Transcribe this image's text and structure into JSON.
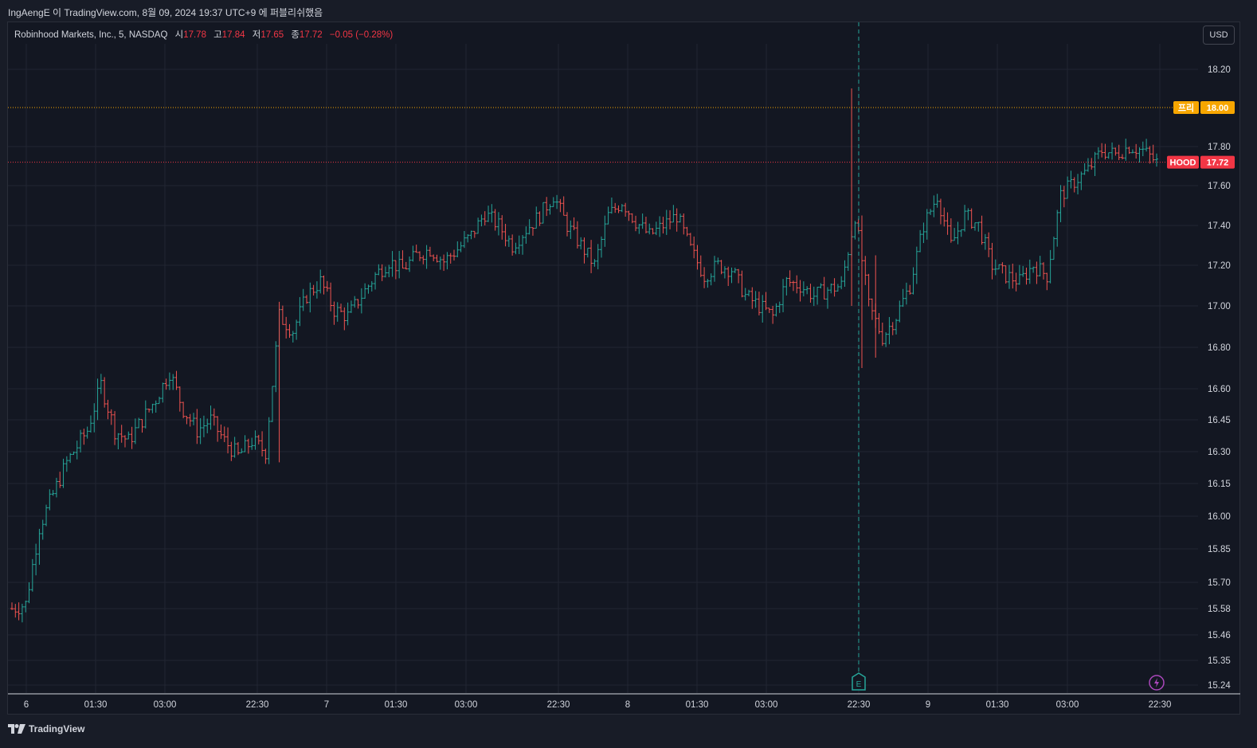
{
  "header": {
    "attribution": "IngAengE 이 TradingView.com, 8월 09, 2024 19:37 UTC+9 에 퍼블리쉬했음"
  },
  "legend": {
    "symbol": "Robinhood Markets, Inc., 5, NASDAQ",
    "open_label": "시",
    "open": "17.78",
    "high_label": "고",
    "high": "17.84",
    "low_label": "저",
    "low": "17.65",
    "close_label": "종",
    "close": "17.72",
    "change": "−0.05 (−0.28%)"
  },
  "currency_button": "USD",
  "footer": {
    "brand": "TradingView"
  },
  "colors": {
    "up": "#26a69a",
    "down": "#ef5350",
    "prior_line": "#f7a600",
    "price_line": "#f23645",
    "background": "#131722",
    "grid": "#222632"
  },
  "chart_data": {
    "type": "ohlc",
    "interval": "5",
    "y_ticks": [
      15.24,
      15.35,
      15.46,
      15.58,
      15.7,
      15.85,
      16.0,
      16.15,
      16.3,
      16.45,
      16.6,
      16.8,
      17.0,
      17.2,
      17.4,
      17.6,
      17.8,
      18.2
    ],
    "y_tick_labels": [
      "15.24",
      "15.35",
      "15.46",
      "15.58",
      "15.70",
      "15.85",
      "16.00",
      "16.15",
      "16.30",
      "16.45",
      "16.60",
      "16.80",
      "17.00",
      "17.20",
      "17.40",
      "17.60",
      "17.80",
      "18.20"
    ],
    "ylim": [
      15.2,
      18.35
    ],
    "x_ticks": [
      "6",
      "01:30",
      "03:00",
      "22:30",
      "7",
      "01:30",
      "03:00",
      "22:30",
      "8",
      "01:30",
      "03:00",
      "22:30",
      "9",
      "01:30",
      "03:00",
      "22:30"
    ],
    "earnings_marker": {
      "label": "E",
      "at_tick": "22:30 (8)"
    },
    "lightning_marker": {
      "icon": "lightning-icon"
    },
    "markers": [
      {
        "name": "프리",
        "value": "18.00",
        "price": 18.0
      },
      {
        "name": "HOOD",
        "value": "17.72",
        "price": 17.72
      }
    ],
    "trend_points": [
      [
        0,
        15.58
      ],
      [
        4,
        15.6
      ],
      [
        8,
        15.95
      ],
      [
        12,
        16.1
      ],
      [
        16,
        16.25
      ],
      [
        22,
        16.4
      ],
      [
        26,
        16.62
      ],
      [
        30,
        16.4
      ],
      [
        34,
        16.35
      ],
      [
        38,
        16.45
      ],
      [
        42,
        16.55
      ],
      [
        46,
        16.68
      ],
      [
        50,
        16.5
      ],
      [
        54,
        16.4
      ],
      [
        58,
        16.45
      ],
      [
        62,
        16.35
      ],
      [
        66,
        16.28
      ],
      [
        70,
        16.35
      ],
      [
        74,
        16.3
      ],
      [
        78,
        16.95
      ],
      [
        82,
        16.88
      ],
      [
        86,
        17.05
      ],
      [
        90,
        17.12
      ],
      [
        94,
        16.98
      ],
      [
        98,
        16.95
      ],
      [
        102,
        17.05
      ],
      [
        106,
        17.15
      ],
      [
        110,
        17.22
      ],
      [
        114,
        17.18
      ],
      [
        118,
        17.25
      ],
      [
        122,
        17.28
      ],
      [
        126,
        17.22
      ],
      [
        130,
        17.28
      ],
      [
        134,
        17.35
      ],
      [
        138,
        17.46
      ],
      [
        142,
        17.4
      ],
      [
        146,
        17.3
      ],
      [
        150,
        17.38
      ],
      [
        154,
        17.45
      ],
      [
        158,
        17.55
      ],
      [
        162,
        17.4
      ],
      [
        166,
        17.3
      ],
      [
        170,
        17.2
      ],
      [
        174,
        17.45
      ],
      [
        178,
        17.52
      ],
      [
        182,
        17.42
      ],
      [
        186,
        17.35
      ],
      [
        190,
        17.4
      ],
      [
        194,
        17.45
      ],
      [
        198,
        17.28
      ],
      [
        202,
        17.15
      ],
      [
        206,
        17.2
      ],
      [
        210,
        17.18
      ],
      [
        214,
        17.05
      ],
      [
        218,
        17.0
      ],
      [
        222,
        16.95
      ],
      [
        226,
        17.12
      ],
      [
        230,
        17.1
      ],
      [
        234,
        17.05
      ],
      [
        238,
        17.08
      ],
      [
        242,
        17.1
      ],
      [
        246,
        17.45
      ],
      [
        250,
        17.0
      ],
      [
        254,
        16.85
      ],
      [
        258,
        16.95
      ],
      [
        262,
        17.1
      ],
      [
        266,
        17.4
      ],
      [
        270,
        17.55
      ],
      [
        274,
        17.3
      ],
      [
        278,
        17.45
      ],
      [
        282,
        17.4
      ],
      [
        286,
        17.2
      ],
      [
        290,
        17.15
      ],
      [
        294,
        17.12
      ],
      [
        298,
        17.2
      ],
      [
        302,
        17.15
      ],
      [
        306,
        17.55
      ],
      [
        310,
        17.62
      ],
      [
        314,
        17.68
      ],
      [
        318,
        17.78
      ],
      [
        322,
        17.76
      ],
      [
        326,
        17.8
      ],
      [
        330,
        17.78
      ],
      [
        334,
        17.72
      ]
    ],
    "trend_length": 334
  }
}
